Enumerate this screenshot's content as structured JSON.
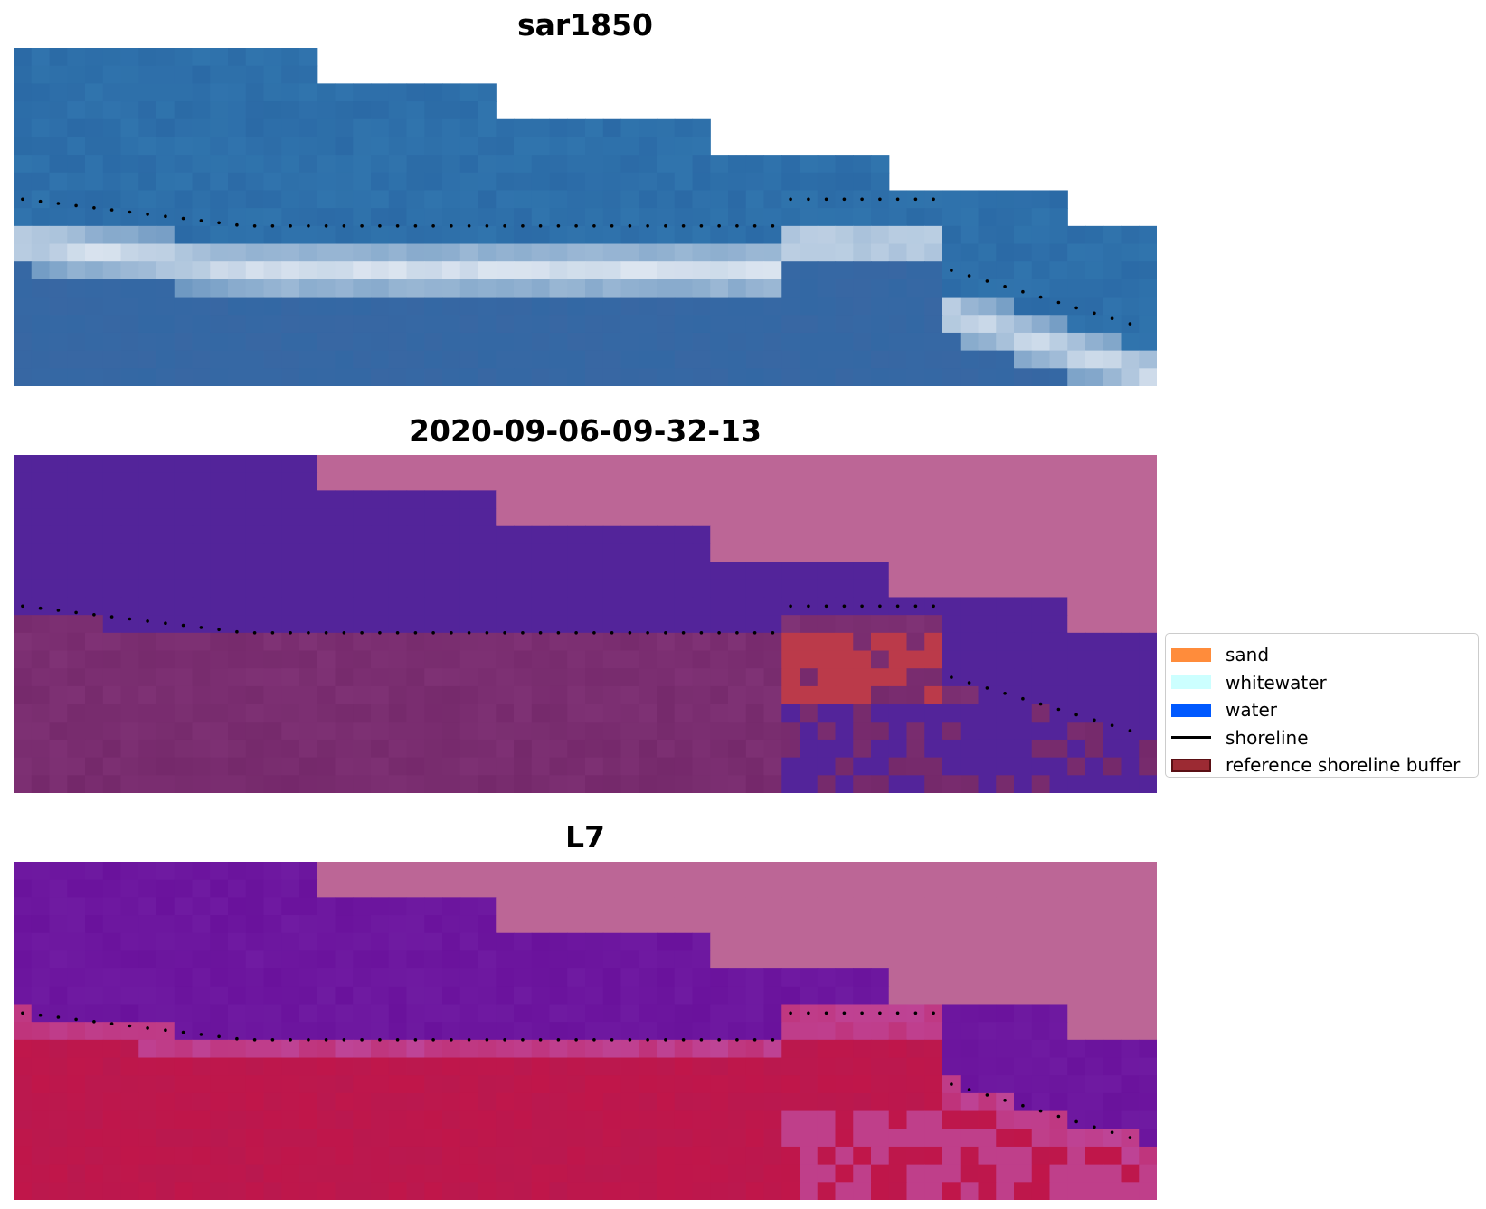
{
  "panels": [
    {
      "title": "sar1850",
      "kind": "rgb"
    },
    {
      "title": "2020-09-06-09-32-13",
      "kind": "classified"
    },
    {
      "title": "L7",
      "kind": "index"
    }
  ],
  "legend": {
    "items": [
      {
        "label": "sand",
        "color": "#ff8c3b",
        "type": "patch"
      },
      {
        "label": "whitewater",
        "color": "#ccffff",
        "type": "patch"
      },
      {
        "label": "water",
        "color": "#0059ff",
        "type": "patch"
      },
      {
        "label": "shoreline",
        "color": "#000000",
        "type": "line"
      },
      {
        "label": "reference shoreline buffer",
        "color": "#9c2a33",
        "type": "buffer"
      }
    ]
  },
  "colors": {
    "nodata": "#bc6696",
    "sea_blue": "#2b6aa6",
    "surf_white": "#e6ecf4",
    "class_water": "#53249a",
    "class_land": "#74286a",
    "class_buffer": "#bb3a4a",
    "index_water": "#6a129c",
    "index_land": "#c0164a"
  }
}
